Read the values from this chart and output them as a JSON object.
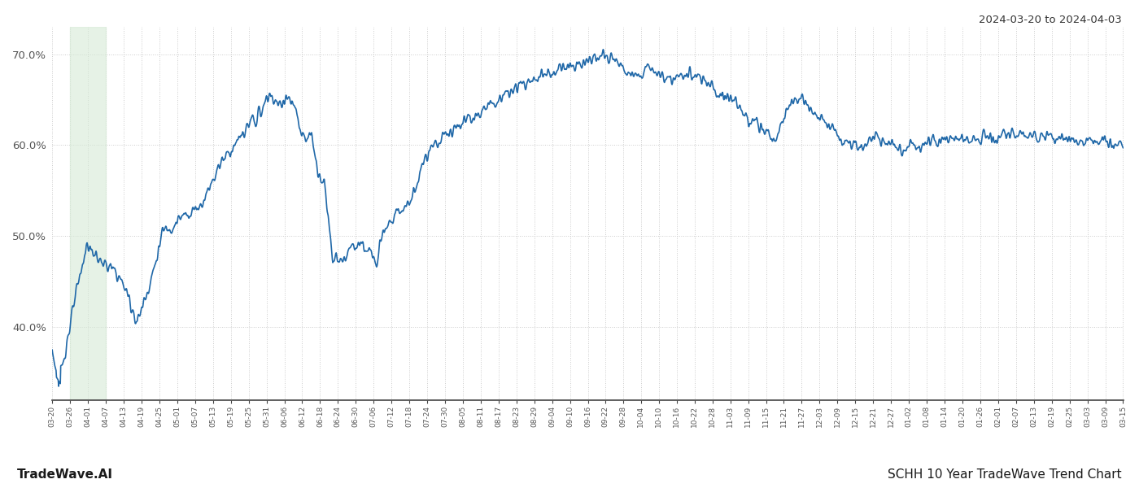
{
  "title_top_right": "2024-03-20 to 2024-04-03",
  "title_bottom_left": "TradeWave.AI",
  "title_bottom_right": "SCHH 10 Year TradeWave Trend Chart",
  "line_color": "#2068a8",
  "line_width": 1.2,
  "shade_color": "#d6ead6",
  "shade_alpha": 0.6,
  "background_color": "#ffffff",
  "grid_color": "#cccccc",
  "grid_linestyle": "dotted",
  "ylim_min": 32,
  "ylim_max": 73,
  "yticks": [
    40.0,
    50.0,
    60.0,
    70.0
  ],
  "xlabels": [
    "03-20",
    "03-26",
    "04-01",
    "04-07",
    "04-13",
    "04-19",
    "04-25",
    "05-01",
    "05-07",
    "05-13",
    "05-19",
    "05-25",
    "05-31",
    "06-06",
    "06-12",
    "06-18",
    "06-24",
    "06-30",
    "07-06",
    "07-12",
    "07-18",
    "07-24",
    "07-30",
    "08-05",
    "08-11",
    "08-17",
    "08-23",
    "08-29",
    "09-04",
    "09-10",
    "09-16",
    "09-22",
    "09-28",
    "10-04",
    "10-10",
    "10-16",
    "10-22",
    "10-28",
    "11-03",
    "11-09",
    "11-15",
    "11-21",
    "11-27",
    "12-03",
    "12-09",
    "12-15",
    "12-21",
    "12-27",
    "01-02",
    "01-08",
    "01-14",
    "01-20",
    "01-26",
    "02-01",
    "02-07",
    "02-13",
    "02-19",
    "02-25",
    "03-03",
    "03-09",
    "03-15"
  ],
  "shade_xstart_idx": 1,
  "shade_xend_idx": 3,
  "num_data_points": 2520
}
